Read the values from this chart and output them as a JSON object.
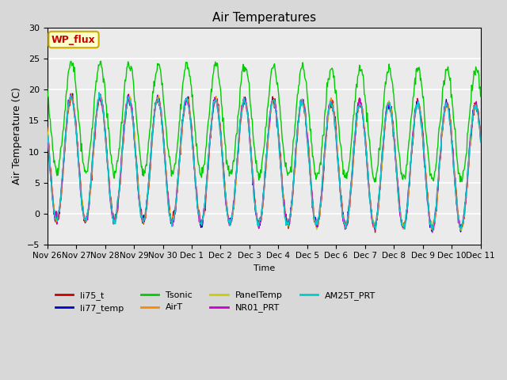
{
  "title": "Air Temperatures",
  "ylabel": "Air Temperature (C)",
  "xlabel": "Time",
  "ylim": [
    -5,
    30
  ],
  "series": [
    "li75_t",
    "li77_temp",
    "Tsonic",
    "AirT",
    "PanelTemp",
    "NR01_PRT",
    "AM25T_PRT"
  ],
  "colors": {
    "li75_t": "#cc0000",
    "li77_temp": "#0000cc",
    "Tsonic": "#00cc00",
    "AirT": "#ff8800",
    "PanelTemp": "#cccc00",
    "NR01_PRT": "#cc00cc",
    "AM25T_PRT": "#00cccc"
  },
  "annotation_text": "WP_flux",
  "annotation_color": "#cc0000",
  "annotation_bg": "#ffffcc",
  "annotation_border": "#ccaa00",
  "x_tick_labels": [
    "Nov 26",
    "Nov 27",
    "Nov 28",
    "Nov 29",
    "Nov 30",
    "Dec 1",
    "Dec 2",
    "Dec 3",
    "Dec 4",
    "Dec 5",
    "Dec 6",
    "Dec 7",
    "Dec 8",
    "Dec 9",
    "Dec 10",
    "Dec 11"
  ],
  "fig_facecolor": "#d8d8d8",
  "ax_facecolor": "#ebebeb"
}
